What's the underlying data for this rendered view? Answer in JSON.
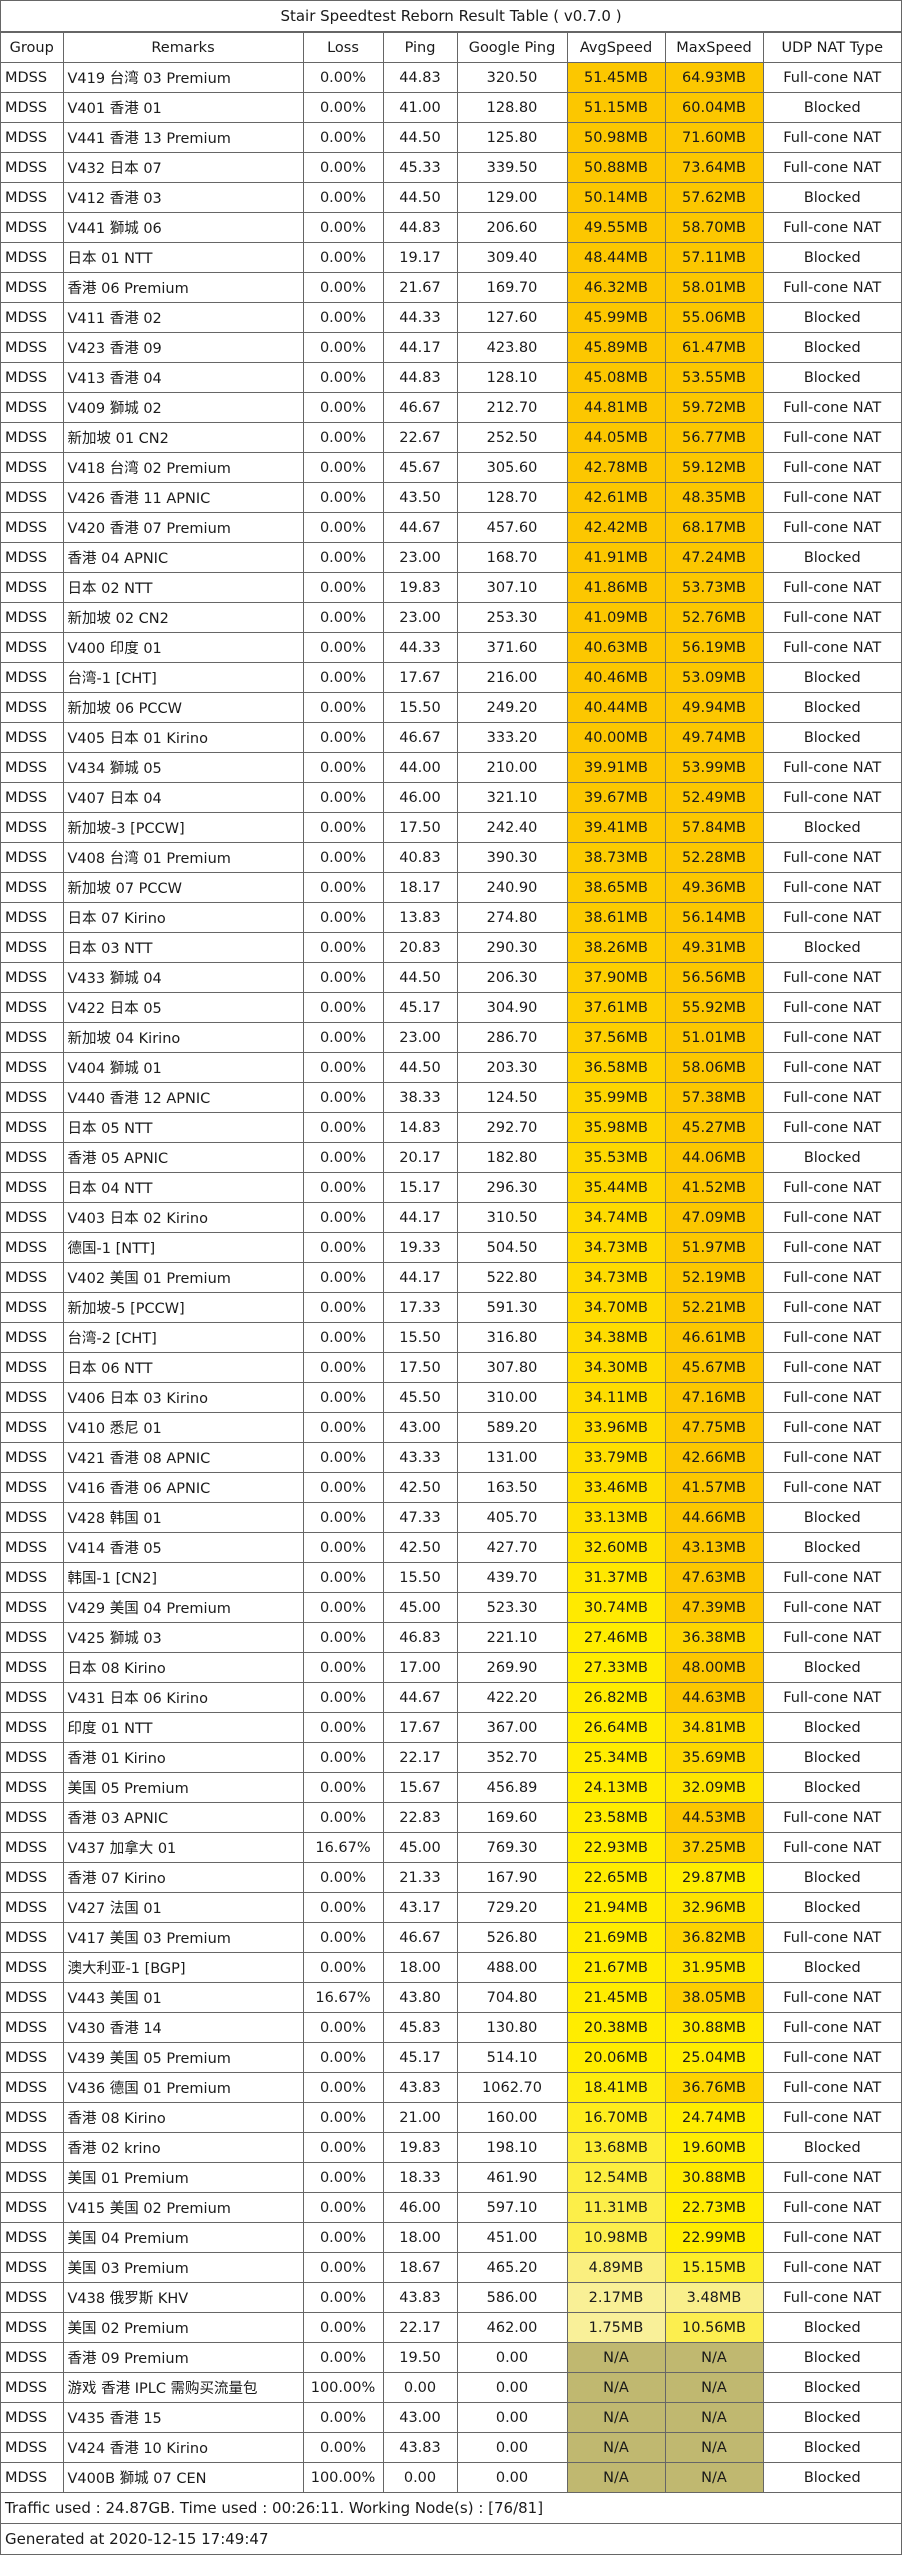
{
  "title": "Stair Speedtest Reborn Result Table ( v0.7.0 )",
  "columns": [
    "Group",
    "Remarks",
    "Loss",
    "Ping",
    "Google Ping",
    "AvgSpeed",
    "MaxSpeed",
    "UDP NAT Type"
  ],
  "rows": [
    [
      "MDSS",
      "V419 台湾 03 Premium",
      "0.00%",
      "44.83",
      "320.50",
      "51.45MB",
      "64.93MB",
      "Full-cone NAT"
    ],
    [
      "MDSS",
      "V401 香港 01",
      "0.00%",
      "41.00",
      "128.80",
      "51.15MB",
      "60.04MB",
      "Blocked"
    ],
    [
      "MDSS",
      "V441 香港 13 Premium",
      "0.00%",
      "44.50",
      "125.80",
      "50.98MB",
      "71.60MB",
      "Full-cone NAT"
    ],
    [
      "MDSS",
      "V432 日本 07",
      "0.00%",
      "45.33",
      "339.50",
      "50.88MB",
      "73.64MB",
      "Full-cone NAT"
    ],
    [
      "MDSS",
      "V412 香港 03",
      "0.00%",
      "44.50",
      "129.00",
      "50.14MB",
      "57.62MB",
      "Blocked"
    ],
    [
      "MDSS",
      "V441 獅城 06",
      "0.00%",
      "44.83",
      "206.60",
      "49.55MB",
      "58.70MB",
      "Full-cone NAT"
    ],
    [
      "MDSS",
      "日本 01 NTT",
      "0.00%",
      "19.17",
      "309.40",
      "48.44MB",
      "57.11MB",
      "Blocked"
    ],
    [
      "MDSS",
      "香港 06 Premium",
      "0.00%",
      "21.67",
      "169.70",
      "46.32MB",
      "58.01MB",
      "Full-cone NAT"
    ],
    [
      "MDSS",
      "V411 香港 02",
      "0.00%",
      "44.33",
      "127.60",
      "45.99MB",
      "55.06MB",
      "Blocked"
    ],
    [
      "MDSS",
      "V423 香港 09",
      "0.00%",
      "44.17",
      "423.80",
      "45.89MB",
      "61.47MB",
      "Blocked"
    ],
    [
      "MDSS",
      "V413 香港 04",
      "0.00%",
      "44.83",
      "128.10",
      "45.08MB",
      "53.55MB",
      "Blocked"
    ],
    [
      "MDSS",
      "V409 獅城 02",
      "0.00%",
      "46.67",
      "212.70",
      "44.81MB",
      "59.72MB",
      "Full-cone NAT"
    ],
    [
      "MDSS",
      "新加坡 01 CN2",
      "0.00%",
      "22.67",
      "252.50",
      "44.05MB",
      "56.77MB",
      "Full-cone NAT"
    ],
    [
      "MDSS",
      "V418 台湾 02 Premium",
      "0.00%",
      "45.67",
      "305.60",
      "42.78MB",
      "59.12MB",
      "Full-cone NAT"
    ],
    [
      "MDSS",
      "V426 香港 11 APNIC",
      "0.00%",
      "43.50",
      "128.70",
      "42.61MB",
      "48.35MB",
      "Full-cone NAT"
    ],
    [
      "MDSS",
      "V420 香港 07 Premium",
      "0.00%",
      "44.67",
      "457.60",
      "42.42MB",
      "68.17MB",
      "Full-cone NAT"
    ],
    [
      "MDSS",
      "香港 04 APNIC",
      "0.00%",
      "23.00",
      "168.70",
      "41.91MB",
      "47.24MB",
      "Blocked"
    ],
    [
      "MDSS",
      "日本 02 NTT",
      "0.00%",
      "19.83",
      "307.10",
      "41.86MB",
      "53.73MB",
      "Full-cone NAT"
    ],
    [
      "MDSS",
      "新加坡 02 CN2",
      "0.00%",
      "23.00",
      "253.30",
      "41.09MB",
      "52.76MB",
      "Full-cone NAT"
    ],
    [
      "MDSS",
      "V400 印度 01",
      "0.00%",
      "44.33",
      "371.60",
      "40.63MB",
      "56.19MB",
      "Full-cone NAT"
    ],
    [
      "MDSS",
      "台湾-1 [CHT]",
      "0.00%",
      "17.67",
      "216.00",
      "40.46MB",
      "53.09MB",
      "Blocked"
    ],
    [
      "MDSS",
      "新加坡 06 PCCW",
      "0.00%",
      "15.50",
      "249.20",
      "40.44MB",
      "49.94MB",
      "Blocked"
    ],
    [
      "MDSS",
      "V405 日本 01 Kirino",
      "0.00%",
      "46.67",
      "333.20",
      "40.00MB",
      "49.74MB",
      "Blocked"
    ],
    [
      "MDSS",
      "V434 獅城 05",
      "0.00%",
      "44.00",
      "210.00",
      "39.91MB",
      "53.99MB",
      "Full-cone NAT"
    ],
    [
      "MDSS",
      "V407 日本 04",
      "0.00%",
      "46.00",
      "321.10",
      "39.67MB",
      "52.49MB",
      "Full-cone NAT"
    ],
    [
      "MDSS",
      "新加坡-3 [PCCW]",
      "0.00%",
      "17.50",
      "242.40",
      "39.41MB",
      "57.84MB",
      "Blocked"
    ],
    [
      "MDSS",
      "V408 台湾 01 Premium",
      "0.00%",
      "40.83",
      "390.30",
      "38.73MB",
      "52.28MB",
      "Full-cone NAT"
    ],
    [
      "MDSS",
      "新加坡 07 PCCW",
      "0.00%",
      "18.17",
      "240.90",
      "38.65MB",
      "49.36MB",
      "Full-cone NAT"
    ],
    [
      "MDSS",
      "日本 07 Kirino",
      "0.00%",
      "13.83",
      "274.80",
      "38.61MB",
      "56.14MB",
      "Full-cone NAT"
    ],
    [
      "MDSS",
      "日本 03 NTT",
      "0.00%",
      "20.83",
      "290.30",
      "38.26MB",
      "49.31MB",
      "Blocked"
    ],
    [
      "MDSS",
      "V433 獅城 04",
      "0.00%",
      "44.50",
      "206.30",
      "37.90MB",
      "56.56MB",
      "Full-cone NAT"
    ],
    [
      "MDSS",
      "V422 日本 05",
      "0.00%",
      "45.17",
      "304.90",
      "37.61MB",
      "55.92MB",
      "Full-cone NAT"
    ],
    [
      "MDSS",
      "新加坡 04 Kirino",
      "0.00%",
      "23.00",
      "286.70",
      "37.56MB",
      "51.01MB",
      "Full-cone NAT"
    ],
    [
      "MDSS",
      "V404 獅城 01",
      "0.00%",
      "44.50",
      "203.30",
      "36.58MB",
      "58.06MB",
      "Full-cone NAT"
    ],
    [
      "MDSS",
      "V440 香港 12 APNIC",
      "0.00%",
      "38.33",
      "124.50",
      "35.99MB",
      "57.38MB",
      "Full-cone NAT"
    ],
    [
      "MDSS",
      "日本 05 NTT",
      "0.00%",
      "14.83",
      "292.70",
      "35.98MB",
      "45.27MB",
      "Full-cone NAT"
    ],
    [
      "MDSS",
      "香港 05 APNIC",
      "0.00%",
      "20.17",
      "182.80",
      "35.53MB",
      "44.06MB",
      "Blocked"
    ],
    [
      "MDSS",
      "日本 04 NTT",
      "0.00%",
      "15.17",
      "296.30",
      "35.44MB",
      "41.52MB",
      "Full-cone NAT"
    ],
    [
      "MDSS",
      "V403 日本 02 Kirino",
      "0.00%",
      "44.17",
      "310.50",
      "34.74MB",
      "47.09MB",
      "Full-cone NAT"
    ],
    [
      "MDSS",
      "德国-1 [NTT]",
      "0.00%",
      "19.33",
      "504.50",
      "34.73MB",
      "51.97MB",
      "Full-cone NAT"
    ],
    [
      "MDSS",
      "V402 美国 01 Premium",
      "0.00%",
      "44.17",
      "522.80",
      "34.73MB",
      "52.19MB",
      "Full-cone NAT"
    ],
    [
      "MDSS",
      "新加坡-5 [PCCW]",
      "0.00%",
      "17.33",
      "591.30",
      "34.70MB",
      "52.21MB",
      "Full-cone NAT"
    ],
    [
      "MDSS",
      "台湾-2 [CHT]",
      "0.00%",
      "15.50",
      "316.80",
      "34.38MB",
      "46.61MB",
      "Full-cone NAT"
    ],
    [
      "MDSS",
      "日本 06 NTT",
      "0.00%",
      "17.50",
      "307.80",
      "34.30MB",
      "45.67MB",
      "Full-cone NAT"
    ],
    [
      "MDSS",
      "V406 日本 03 Kirino",
      "0.00%",
      "45.50",
      "310.00",
      "34.11MB",
      "47.16MB",
      "Full-cone NAT"
    ],
    [
      "MDSS",
      "V410 悉尼 01",
      "0.00%",
      "43.00",
      "589.20",
      "33.96MB",
      "47.75MB",
      "Full-cone NAT"
    ],
    [
      "MDSS",
      "V421 香港 08 APNIC",
      "0.00%",
      "43.33",
      "131.00",
      "33.79MB",
      "42.66MB",
      "Full-cone NAT"
    ],
    [
      "MDSS",
      "V416 香港 06 APNIC",
      "0.00%",
      "42.50",
      "163.50",
      "33.46MB",
      "41.57MB",
      "Full-cone NAT"
    ],
    [
      "MDSS",
      "V428 韩国 01",
      "0.00%",
      "47.33",
      "405.70",
      "33.13MB",
      "44.66MB",
      "Blocked"
    ],
    [
      "MDSS",
      "V414 香港 05",
      "0.00%",
      "42.50",
      "427.70",
      "32.60MB",
      "43.13MB",
      "Blocked"
    ],
    [
      "MDSS",
      "韩国-1 [CN2]",
      "0.00%",
      "15.50",
      "439.70",
      "31.37MB",
      "47.63MB",
      "Full-cone NAT"
    ],
    [
      "MDSS",
      "V429 美国 04 Premium",
      "0.00%",
      "45.00",
      "523.30",
      "30.74MB",
      "47.39MB",
      "Full-cone NAT"
    ],
    [
      "MDSS",
      "V425 獅城 03",
      "0.00%",
      "46.83",
      "221.10",
      "27.46MB",
      "36.38MB",
      "Full-cone NAT"
    ],
    [
      "MDSS",
      "日本 08 Kirino",
      "0.00%",
      "17.00",
      "269.90",
      "27.33MB",
      "48.00MB",
      "Blocked"
    ],
    [
      "MDSS",
      "V431 日本 06 Kirino",
      "0.00%",
      "44.67",
      "422.20",
      "26.82MB",
      "44.63MB",
      "Full-cone NAT"
    ],
    [
      "MDSS",
      "印度 01 NTT",
      "0.00%",
      "17.67",
      "367.00",
      "26.64MB",
      "34.81MB",
      "Blocked"
    ],
    [
      "MDSS",
      "香港 01 Kirino",
      "0.00%",
      "22.17",
      "352.70",
      "25.34MB",
      "35.69MB",
      "Blocked"
    ],
    [
      "MDSS",
      "美国 05 Premium",
      "0.00%",
      "15.67",
      "456.89",
      "24.13MB",
      "32.09MB",
      "Blocked"
    ],
    [
      "MDSS",
      "香港 03 APNIC",
      "0.00%",
      "22.83",
      "169.60",
      "23.58MB",
      "44.53MB",
      "Full-cone NAT"
    ],
    [
      "MDSS",
      "V437 加拿大 01",
      "16.67%",
      "45.00",
      "769.30",
      "22.93MB",
      "37.25MB",
      "Full-cone NAT"
    ],
    [
      "MDSS",
      "香港 07 Kirino",
      "0.00%",
      "21.33",
      "167.90",
      "22.65MB",
      "29.87MB",
      "Blocked"
    ],
    [
      "MDSS",
      "V427 法国 01",
      "0.00%",
      "43.17",
      "729.20",
      "21.94MB",
      "32.96MB",
      "Blocked"
    ],
    [
      "MDSS",
      "V417 美国 03 Premium",
      "0.00%",
      "46.67",
      "526.80",
      "21.69MB",
      "36.82MB",
      "Full-cone NAT"
    ],
    [
      "MDSS",
      "澳大利亚-1 [BGP]",
      "0.00%",
      "18.00",
      "488.00",
      "21.67MB",
      "31.95MB",
      "Blocked"
    ],
    [
      "MDSS",
      "V443 美国 01",
      "16.67%",
      "43.80",
      "704.80",
      "21.45MB",
      "38.05MB",
      "Full-cone NAT"
    ],
    [
      "MDSS",
      "V430 香港 14",
      "0.00%",
      "45.83",
      "130.80",
      "20.38MB",
      "30.88MB",
      "Full-cone NAT"
    ],
    [
      "MDSS",
      "V439 美国 05 Premium",
      "0.00%",
      "45.17",
      "514.10",
      "20.06MB",
      "25.04MB",
      "Full-cone NAT"
    ],
    [
      "MDSS",
      "V436 德国 01 Premium",
      "0.00%",
      "43.83",
      "1062.70",
      "18.41MB",
      "36.76MB",
      "Full-cone NAT"
    ],
    [
      "MDSS",
      "香港 08 Kirino",
      "0.00%",
      "21.00",
      "160.00",
      "16.70MB",
      "24.74MB",
      "Full-cone NAT"
    ],
    [
      "MDSS",
      "香港 02 krino",
      "0.00%",
      "19.83",
      "198.10",
      "13.68MB",
      "19.60MB",
      "Blocked"
    ],
    [
      "MDSS",
      "美国 01 Premium",
      "0.00%",
      "18.33",
      "461.90",
      "12.54MB",
      "30.88MB",
      "Full-cone NAT"
    ],
    [
      "MDSS",
      "V415 美国 02 Premium",
      "0.00%",
      "46.00",
      "597.10",
      "11.31MB",
      "22.73MB",
      "Full-cone NAT"
    ],
    [
      "MDSS",
      "美国 04 Premium",
      "0.00%",
      "18.00",
      "451.00",
      "10.98MB",
      "22.99MB",
      "Full-cone NAT"
    ],
    [
      "MDSS",
      "美国 03 Premium",
      "0.00%",
      "18.67",
      "465.20",
      "4.89MB",
      "15.15MB",
      "Full-cone NAT"
    ],
    [
      "MDSS",
      "V438 俄罗斯 KHV",
      "0.00%",
      "43.83",
      "586.00",
      "2.17MB",
      "3.48MB",
      "Full-cone NAT"
    ],
    [
      "MDSS",
      "美国 02 Premium",
      "0.00%",
      "22.17",
      "462.00",
      "1.75MB",
      "10.56MB",
      "Blocked"
    ],
    [
      "MDSS",
      "香港 09  Premium",
      "0.00%",
      "19.50",
      "0.00",
      "N/A",
      "N/A",
      "Blocked"
    ],
    [
      "MDSS",
      "游戏 香港 IPLC 需购买流量包",
      "100.00%",
      "0.00",
      "0.00",
      "N/A",
      "N/A",
      "Blocked"
    ],
    [
      "MDSS",
      "V435 香港 15",
      "0.00%",
      "43.00",
      "0.00",
      "N/A",
      "N/A",
      "Blocked"
    ],
    [
      "MDSS",
      "V424 香港 10 Kirino",
      "0.00%",
      "43.83",
      "0.00",
      "N/A",
      "N/A",
      "Blocked"
    ],
    [
      "MDSS",
      "V400B 獅城 07 CEN",
      "100.00%",
      "0.00",
      "0.00",
      "N/A",
      "N/A",
      "Blocked"
    ]
  ],
  "footer": {
    "traffic": "Traffic used : 24.87GB. Time used : 00:26:11. Working Node(s) : [76/81]",
    "generated": "Generated at 2020-12-15 17:49:47"
  },
  "colors": {
    "na_cell": "#c0b870",
    "speed_high": "#fcc700",
    "speed_mid": "#ffed00",
    "speed_low": "#f8f0a8",
    "grid_line": "#666666"
  }
}
